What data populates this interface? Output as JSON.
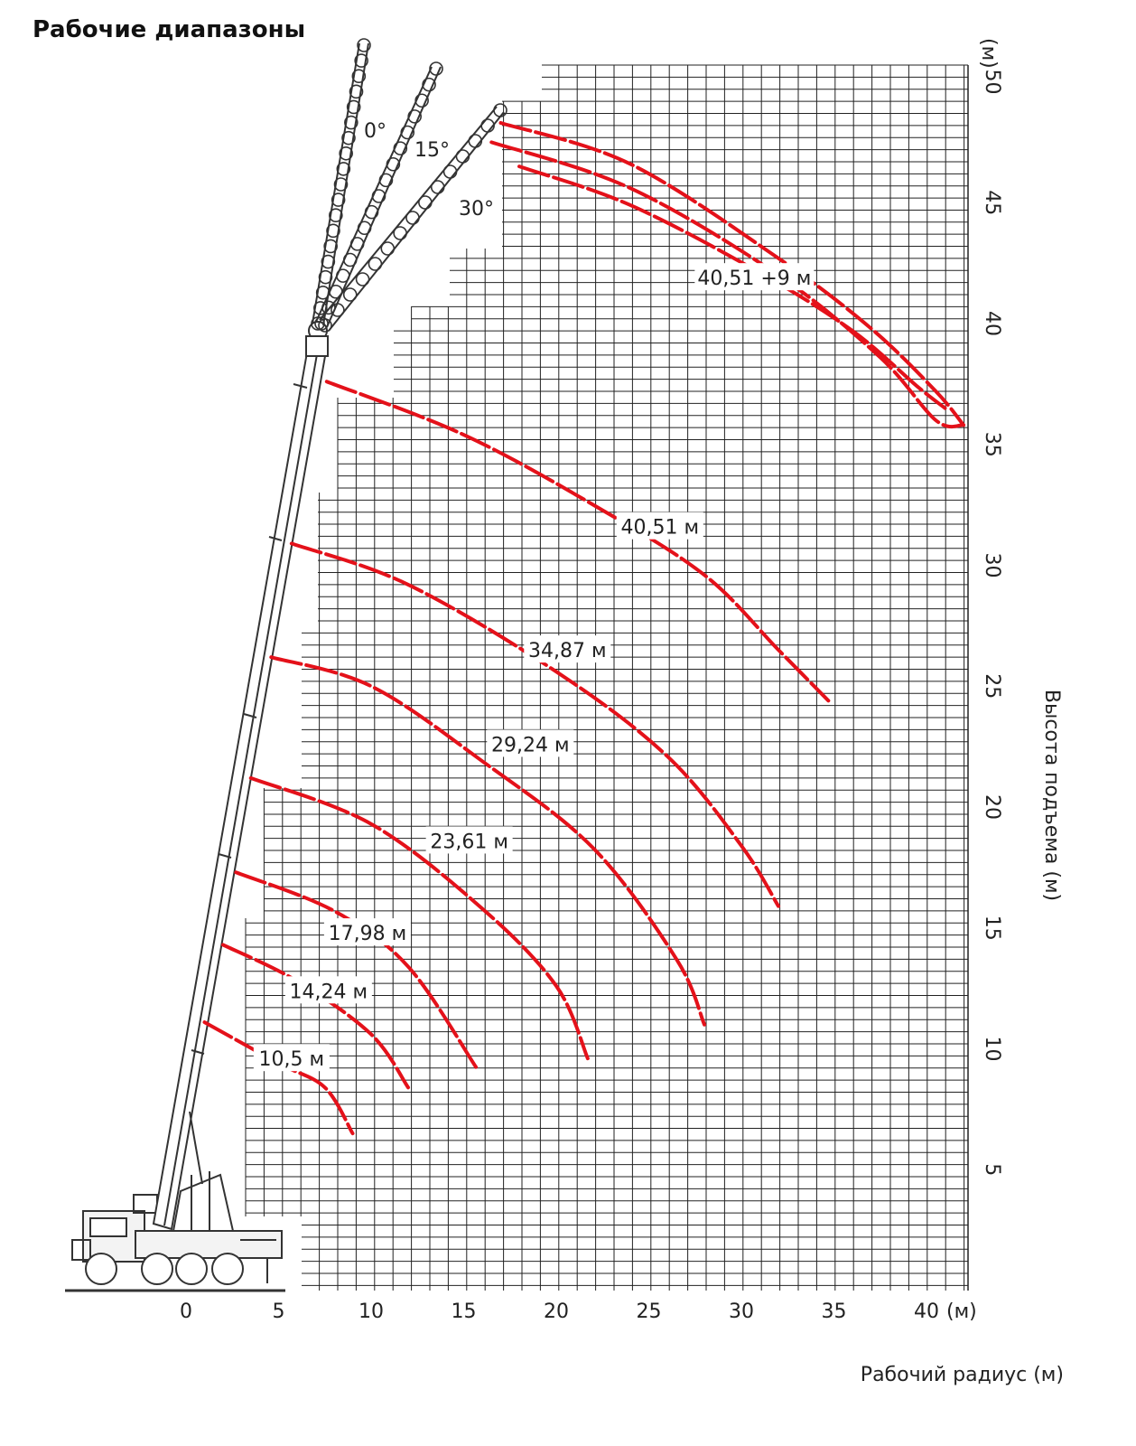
{
  "page": {
    "title": "Рабочие диапазоны"
  },
  "chart_data": {
    "type": "line",
    "title": "Рабочие диапазоны",
    "xlabel": "Рабочий радиус (м)",
    "ylabel": "Высота подъема (м)",
    "x_unit": "(м)",
    "y_unit": "(м)",
    "xlim": [
      0,
      42
    ],
    "ylim": [
      0,
      51
    ],
    "x_ticks": [
      "0",
      "5",
      "10",
      "15",
      "20",
      "25",
      "30",
      "35",
      "40"
    ],
    "y_ticks": [
      "5",
      "10",
      "15",
      "20",
      "25",
      "30",
      "35",
      "40",
      "45",
      "50"
    ],
    "grid": true,
    "jib_angles": [
      "0°",
      "15°",
      "30°"
    ],
    "series": [
      {
        "name": "10,5 м",
        "points": [
          [
            1.0,
            11.1
          ],
          [
            5.0,
            9.4
          ],
          [
            7.5,
            8.4
          ],
          [
            9.0,
            6.5
          ]
        ]
      },
      {
        "name": "14,24 м",
        "points": [
          [
            2.0,
            14.3
          ],
          [
            6.0,
            12.8
          ],
          [
            10.0,
            10.6
          ],
          [
            12.0,
            8.4
          ]
        ]
      },
      {
        "name": "17,98 м",
        "points": [
          [
            2.7,
            17.3
          ],
          [
            8.0,
            15.7
          ],
          [
            12.0,
            13.4
          ],
          [
            15.7,
            9.2
          ]
        ]
      },
      {
        "name": "23,61 м",
        "points": [
          [
            3.5,
            21.2
          ],
          [
            10.0,
            19.3
          ],
          [
            16.0,
            15.8
          ],
          [
            20.0,
            12.6
          ],
          [
            21.7,
            9.6
          ]
        ]
      },
      {
        "name": "29,24 м",
        "points": [
          [
            4.6,
            26.2
          ],
          [
            10.0,
            25.0
          ],
          [
            16.0,
            21.9
          ],
          [
            22.0,
            18.3
          ],
          [
            26.5,
            13.7
          ],
          [
            28.0,
            11.0
          ]
        ]
      },
      {
        "name": "34,87 м",
        "points": [
          [
            5.7,
            30.9
          ],
          [
            12.0,
            29.2
          ],
          [
            20.0,
            25.6
          ],
          [
            26.0,
            22.1
          ],
          [
            30.0,
            18.4
          ],
          [
            32.0,
            15.9
          ]
        ]
      },
      {
        "name": "40,51 м",
        "points": [
          [
            7.6,
            37.6
          ],
          [
            15.0,
            35.4
          ],
          [
            22.0,
            32.5
          ],
          [
            28.0,
            29.6
          ],
          [
            32.0,
            26.5
          ],
          [
            34.7,
            24.4
          ]
        ]
      },
      {
        "name": "40,51 +9 м",
        "points": [
          [
            17.0,
            48.3
          ],
          [
            24.0,
            46.6
          ],
          [
            32.0,
            42.7
          ],
          [
            37.0,
            39.8
          ],
          [
            40.5,
            37.2
          ],
          [
            42.0,
            35.8
          ]
        ]
      },
      {
        "name": "",
        "points": [
          [
            16.5,
            47.5
          ],
          [
            24.0,
            45.6
          ],
          [
            32.0,
            42.0
          ],
          [
            37.5,
            38.6
          ],
          [
            40.5,
            36.0
          ],
          [
            42.0,
            35.8
          ]
        ]
      },
      {
        "name": "",
        "points": [
          [
            18.0,
            46.5
          ],
          [
            24.0,
            44.9
          ],
          [
            31.0,
            42.1
          ],
          [
            36.0,
            39.7
          ],
          [
            39.5,
            37.4
          ],
          [
            41.0,
            36.5
          ]
        ]
      }
    ]
  }
}
